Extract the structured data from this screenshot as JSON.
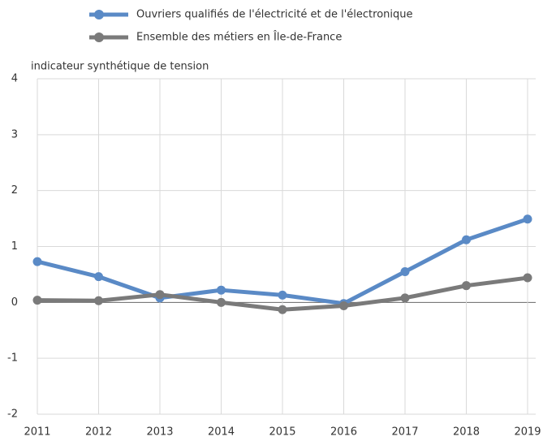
{
  "chart_data": {
    "type": "line",
    "y_label": "indicateur synthétique de tension",
    "x": [
      2011,
      2012,
      2013,
      2014,
      2015,
      2016,
      2017,
      2018,
      2019
    ],
    "series": [
      {
        "name": "Ouvriers qualifiés de l'électricité et de l'électronique",
        "color": "#5a8ac6",
        "values": [
          0.73,
          0.46,
          0.08,
          0.22,
          0.13,
          -0.02,
          0.55,
          1.12,
          1.49
        ]
      },
      {
        "name": "Ensemble des métiers en Île-de-France",
        "color": "#7a7a7a",
        "values": [
          0.04,
          0.03,
          0.14,
          0.0,
          -0.13,
          -0.06,
          0.08,
          0.3,
          0.44
        ]
      }
    ],
    "xlim": [
      2011,
      2019
    ],
    "xticks": [
      2011,
      2012,
      2013,
      2014,
      2015,
      2016,
      2017,
      2018,
      2019
    ],
    "ylim": [
      -2,
      4
    ],
    "yticks": [
      -2,
      -1,
      0,
      1,
      2,
      3,
      4
    ],
    "grid": true
  }
}
